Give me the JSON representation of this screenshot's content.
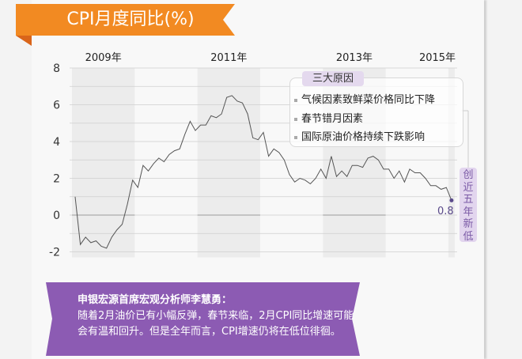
{
  "title": "CPI月度同比(%)",
  "colors": {
    "ribbon": "#f28a22",
    "ribbon_fold": "#d9651a",
    "note_bg": "#8c5bb3",
    "highlight": "#5a4a8a",
    "band": "#ececec",
    "line": "#555555"
  },
  "chart_data": {
    "type": "line",
    "title": "CPI月度同比(%)",
    "ylim": [
      -2,
      8
    ],
    "y_ticks": [
      "8",
      "6",
      "4",
      "2",
      "0",
      "-2"
    ],
    "year_labels": [
      "2009年",
      "2011年",
      "2013年",
      "2015年"
    ],
    "grid": true,
    "x_start": "2009-01",
    "x_end": "2015-01",
    "values": [
      1.0,
      -1.6,
      -1.2,
      -1.5,
      -1.4,
      -1.7,
      -1.8,
      -1.2,
      -0.8,
      -0.5,
      0.6,
      1.9,
      1.5,
      2.7,
      2.4,
      2.8,
      3.1,
      2.9,
      3.3,
      3.5,
      3.6,
      4.4,
      5.1,
      4.6,
      4.9,
      4.9,
      5.4,
      5.3,
      5.5,
      6.4,
      6.5,
      6.2,
      6.1,
      5.5,
      4.2,
      4.1,
      4.5,
      3.2,
      3.6,
      3.4,
      3.0,
      2.2,
      1.8,
      2.0,
      1.9,
      1.7,
      2.0,
      2.5,
      2.0,
      3.2,
      2.1,
      2.4,
      2.1,
      2.7,
      2.7,
      2.6,
      3.1,
      3.2,
      3.0,
      2.5,
      2.5,
      2.0,
      2.4,
      1.8,
      2.5,
      2.3,
      2.3,
      2.0,
      1.6,
      1.6,
      1.4,
      1.5,
      0.8
    ],
    "last_value_label": "0.8"
  },
  "callout": {
    "title": "三大原因",
    "reasons": [
      "气候因素致鲜菜价格同比下降",
      "春节错月因素",
      "国际原油价格持续下跌影响"
    ]
  },
  "highlight_label": "创近五年新低",
  "note": {
    "heading": "申银宏源首席宏观分析师李慧勇：",
    "body": "随着2月油价已有小幅反弹，春节来临，2月CPI同比增速可能会有温和回升。但是全年而言，CPI增速仍将在低位徘徊。"
  }
}
